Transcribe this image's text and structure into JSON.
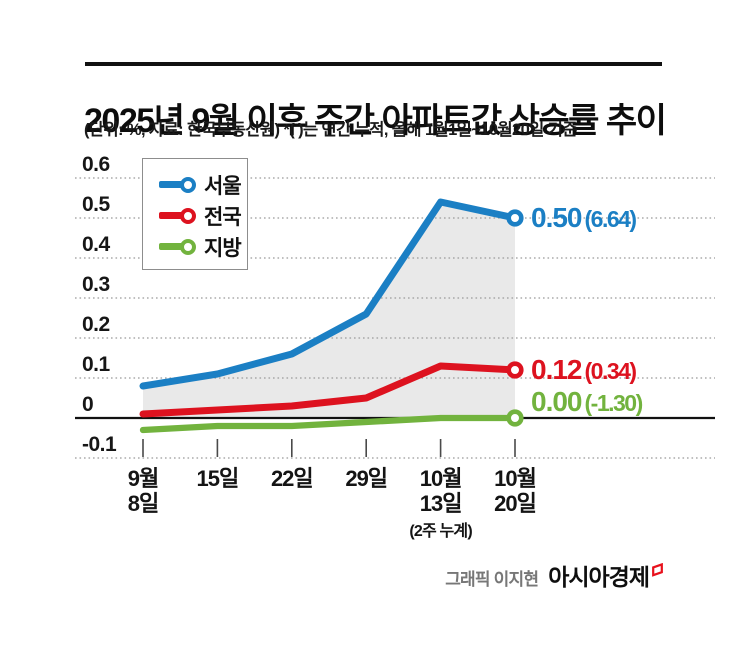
{
  "header": {
    "title": "2025년 9월 이후 주간 아파트값 상승률 추이",
    "subtitle": "(단위: %, 자료: 한국부동산원)  *( )는 연간 누적, 올해 1월1일~10월20일 기준"
  },
  "legend": [
    {
      "label": "서울",
      "color": "#1b7fc4"
    },
    {
      "label": "전국",
      "color": "#dd121f"
    },
    {
      "label": "지방",
      "color": "#72b33e"
    }
  ],
  "chart_data": {
    "type": "line",
    "categories": [
      [
        "9월",
        "8일"
      ],
      [
        "15일"
      ],
      [
        "22일"
      ],
      [
        "29일"
      ],
      [
        "10월",
        "13일"
      ],
      [
        "10월",
        "20일"
      ]
    ],
    "category_note": {
      "index": 4,
      "text": "(2주 누계)"
    },
    "series": [
      {
        "name": "서울",
        "color": "#1b7fc4",
        "values": [
          0.08,
          0.11,
          0.16,
          0.26,
          0.54,
          0.5
        ],
        "end_label": {
          "value": "0.50",
          "annual": "(6.64)"
        }
      },
      {
        "name": "전국",
        "color": "#dd121f",
        "values": [
          0.01,
          0.02,
          0.03,
          0.05,
          0.13,
          0.12
        ],
        "end_label": {
          "value": "0.12",
          "annual": "(0.34)"
        }
      },
      {
        "name": "지방",
        "color": "#72b33e",
        "values": [
          -0.03,
          -0.02,
          -0.02,
          -0.01,
          0.0,
          0.0
        ],
        "end_label": {
          "value": "0.00",
          "annual": "(-1.30)"
        }
      }
    ],
    "yticks": [
      0.6,
      0.5,
      0.4,
      0.3,
      0.2,
      0.1,
      0,
      -0.1
    ],
    "ytick_labels": [
      "0.6",
      "0.5",
      "0.4",
      "0.3",
      "0.2",
      "0.1",
      "0",
      "-0.1"
    ],
    "ylim": [
      -0.1,
      0.6
    ],
    "grid": "dotted",
    "area_fill_under": "서울",
    "area_fill_color": "#e9e9e9",
    "legend_position": "top-left"
  },
  "footer": {
    "credit": "그래픽 이지현",
    "brand": "아시아경제",
    "brand_mark_color": "#e8111c"
  }
}
